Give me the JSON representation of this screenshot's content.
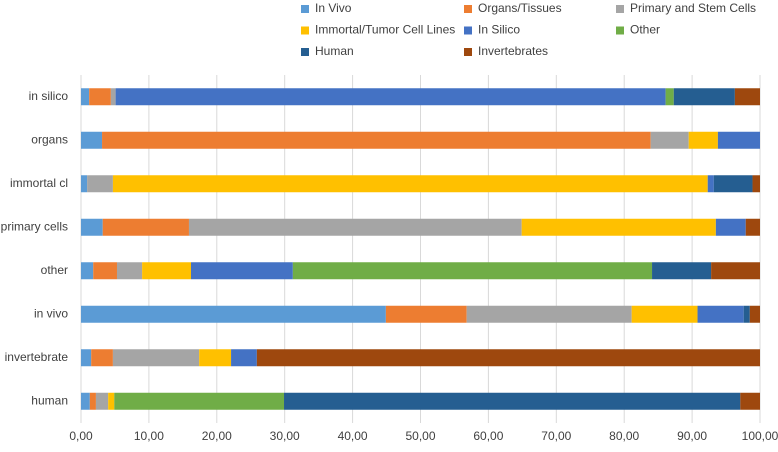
{
  "chart_data": {
    "type": "stacked-bar-horizontal",
    "categories": [
      "in silico",
      "organs",
      "immortal cl",
      "primary cells",
      "other",
      "in vivo",
      "invertebrate",
      "human"
    ],
    "series": [
      {
        "name": "In Vivo",
        "color": "#5b9bd5",
        "values": [
          1.2,
          3.1,
          0.9,
          3.2,
          1.8,
          44.9,
          1.5,
          1.3
        ]
      },
      {
        "name": "Organs/Tissues",
        "color": "#ed7d31",
        "values": [
          3.2,
          80.8,
          0,
          12.7,
          3.5,
          11.9,
          3.2,
          0.9
        ]
      },
      {
        "name": "Primary and Stem Cells",
        "color": "#a5a5a5",
        "values": [
          0.7,
          5.6,
          3.8,
          49,
          3.7,
          24.3,
          12.7,
          1.8
        ]
      },
      {
        "name": "Immortal/Tumor Cell Lines",
        "color": "#ffc000",
        "values": [
          0,
          4.3,
          87.6,
          28.6,
          7.2,
          9.7,
          4.7,
          0.9
        ]
      },
      {
        "name": "In Silico",
        "color": "#4472c4",
        "values": [
          81,
          6.2,
          0.9,
          4.4,
          15,
          6.8,
          3.8,
          0
        ]
      },
      {
        "name": "Other",
        "color": "#70ad47",
        "values": [
          1.2,
          0,
          0,
          0,
          52.9,
          0,
          0,
          25
        ]
      },
      {
        "name": "Human",
        "color": "#255e91",
        "values": [
          9,
          0,
          5.7,
          0,
          8.7,
          0.9,
          0,
          67.2
        ]
      },
      {
        "name": "Invertebrates",
        "color": "#9e480e",
        "values": [
          3.7,
          0,
          1.1,
          2.1,
          7.2,
          1.5,
          74.1,
          2.9
        ]
      }
    ],
    "xlim": [
      0,
      100
    ],
    "xticks": [
      {
        "value": 0,
        "label": "0,00"
      },
      {
        "value": 10,
        "label": "10,00"
      },
      {
        "value": 20,
        "label": "20,00"
      },
      {
        "value": 30,
        "label": "30,00"
      },
      {
        "value": 40,
        "label": "40,00"
      },
      {
        "value": 50,
        "label": "50,00"
      },
      {
        "value": 60,
        "label": "60,00"
      },
      {
        "value": 70,
        "label": "70,00"
      },
      {
        "value": 80,
        "label": "80,00"
      },
      {
        "value": 90,
        "label": "90,00"
      },
      {
        "value": 100,
        "label": "100,00"
      }
    ],
    "grid": true,
    "legend": "top"
  }
}
